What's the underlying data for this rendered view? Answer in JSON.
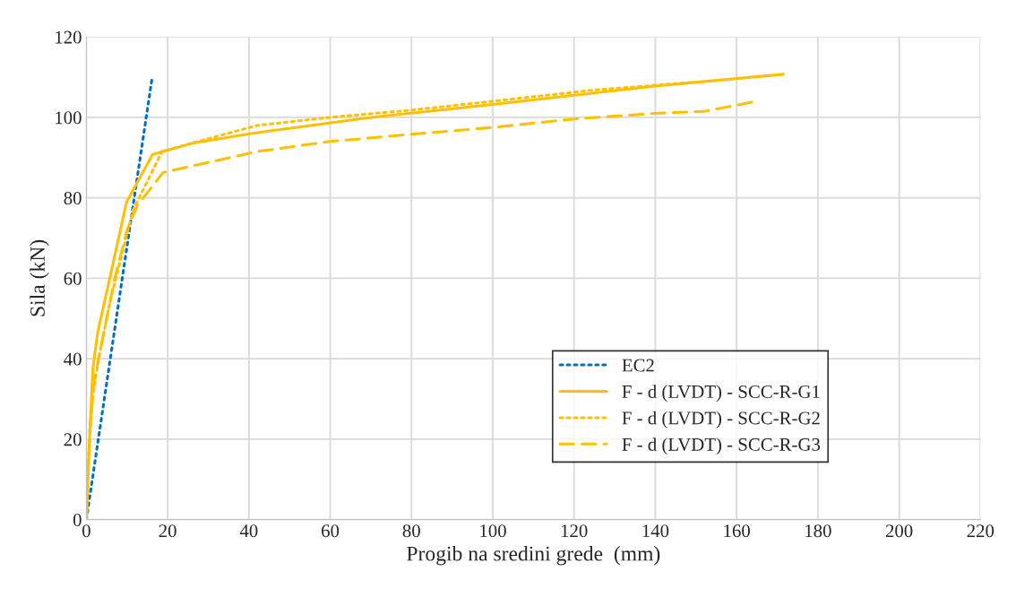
{
  "chart_data": {
    "type": "line",
    "xlabel": "Progib na sredini grede  (mm)",
    "ylabel": "Sila (kN)",
    "xlim": [
      0,
      220
    ],
    "xticks": [
      0,
      20,
      40,
      60,
      80,
      100,
      120,
      140,
      160,
      180,
      200,
      220
    ],
    "ylim": [
      0,
      120
    ],
    "yticks": [
      0,
      20,
      40,
      60,
      80,
      100,
      120
    ],
    "grid": true,
    "legend": "bottom right",
    "marker": "none",
    "series": [
      {
        "name": "EC2",
        "color": "#0070c0",
        "line_style": "dotted",
        "x": [
          0,
          16.2
        ],
        "values": [
          0,
          110
        ]
      },
      {
        "name": "F - d (LVDT) - SCC-R-G1",
        "color": "#ffc000",
        "line_style": "solid",
        "x": [
          0,
          0.3,
          1,
          1.6,
          2.8,
          6.2,
          9.9,
          16.3,
          26.2,
          42,
          70,
          100,
          140,
          171.5
        ],
        "values": [
          0,
          8,
          25,
          37.6,
          46.6,
          62,
          79,
          90.8,
          93.6,
          96.2,
          100,
          103.2,
          107.8,
          110.7
        ]
      },
      {
        "name": "F - d (LVDT) - SCC-R-G2",
        "color": "#ffc000",
        "line_style": "dotted",
        "x": [
          0,
          0.5,
          1.5,
          3,
          6,
          9,
          11.5,
          12,
          18.6,
          26,
          42,
          60,
          80,
          100,
          125,
          149
        ],
        "values": [
          0,
          15,
          30,
          40,
          55,
          67,
          77,
          78,
          91.5,
          93.6,
          98,
          100,
          101.8,
          104,
          106.8,
          108.7
        ]
      },
      {
        "name": "F - d (LVDT) - SCC-R-G3",
        "color": "#ffc000",
        "line_style": "dashed",
        "x": [
          0,
          0.8,
          2,
          4,
          7,
          10,
          12.5,
          14,
          18.9,
          42,
          60,
          80,
          100,
          120,
          140,
          152,
          164
        ],
        "values": [
          0,
          22,
          35,
          45,
          60,
          72,
          78,
          80,
          86.3,
          91.5,
          94,
          95.8,
          97.5,
          99.6,
          101,
          101.5,
          103.8
        ]
      }
    ]
  }
}
